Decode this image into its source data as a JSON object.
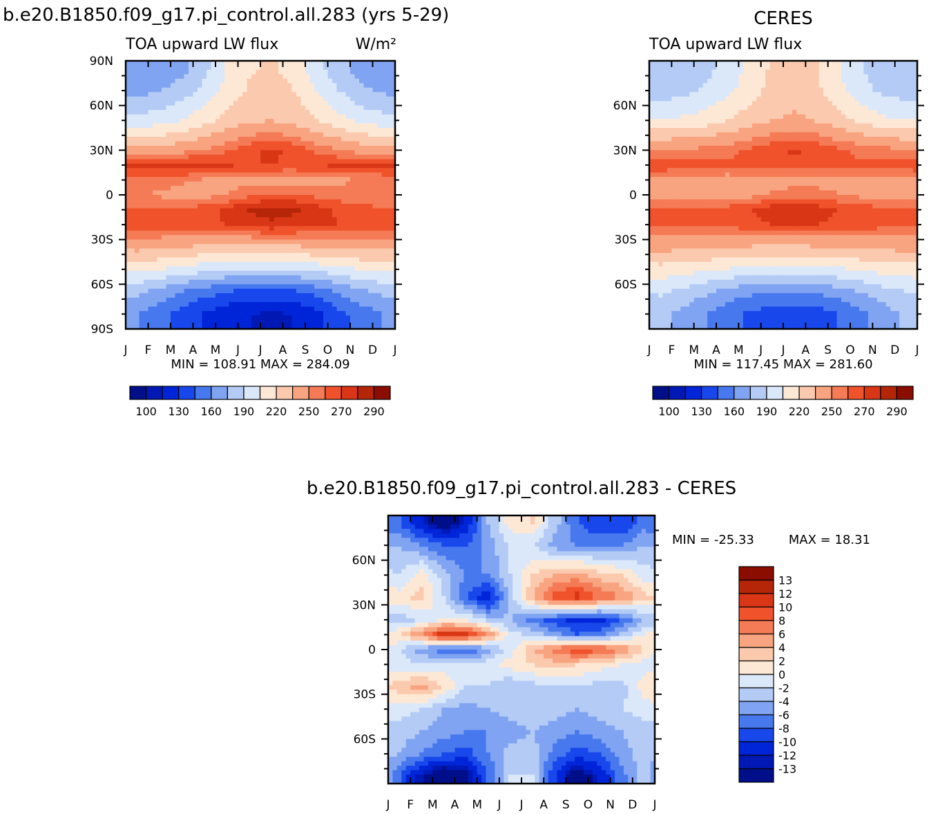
{
  "chart_data": [
    {
      "type": "heatmap",
      "title": "b.e20.B1850.f09_g17.pi_control.all.283 (yrs 5-29)",
      "left_label": "TOA upward LW flux",
      "right_label": "W/m²",
      "x_ticks": [
        "J",
        "F",
        "M",
        "A",
        "M",
        "J",
        "J",
        "A",
        "S",
        "O",
        "N",
        "D",
        "J"
      ],
      "y_ticks": [
        "90N",
        "60N",
        "30N",
        "0",
        "30S",
        "60S",
        "90S"
      ],
      "stats": "MIN =  108.91  MAX =  284.09",
      "colorbar_labels": [
        "100",
        "130",
        "160",
        "190",
        "220",
        "250",
        "270",
        "290"
      ],
      "colors": [
        "#000e8a",
        "#0018b4",
        "#0024d8",
        "#1848ec",
        "#4878ee",
        "#80a4f2",
        "#b4cbf6",
        "#dbe8fa",
        "#fde8d6",
        "#fbcaae",
        "#f8a480",
        "#f47b55",
        "#f0532c",
        "#d93615",
        "#b52508",
        "#8b0d00"
      ],
      "levels": [
        100,
        115,
        130,
        145,
        160,
        175,
        190,
        205,
        220,
        235,
        250,
        260,
        270,
        280,
        290
      ],
      "field": {
        "months": [
          "Jan",
          "Feb",
          "Mar",
          "Apr",
          "May",
          "Jun",
          "Jul",
          "Aug",
          "Sep",
          "Oct",
          "Nov",
          "Dec"
        ],
        "lat": [
          85,
          70,
          50,
          30,
          20,
          10,
          0,
          -10,
          -20,
          -35,
          -50,
          -65,
          -80
        ],
        "values": [
          [
            160,
            163,
            170,
            185,
            205,
            218,
            222,
            215,
            195,
            180,
            168,
            162
          ],
          [
            170,
            174,
            182,
            195,
            210,
            222,
            226,
            220,
            205,
            190,
            178,
            172
          ],
          [
            195,
            198,
            205,
            215,
            225,
            232,
            235,
            230,
            220,
            210,
            200,
            196
          ],
          [
            240,
            242,
            245,
            250,
            258,
            268,
            272,
            268,
            258,
            250,
            244,
            241
          ],
          [
            272,
            275,
            277,
            275,
            272,
            270,
            270,
            268,
            270,
            272,
            273,
            272
          ],
          [
            258,
            256,
            252,
            248,
            245,
            244,
            243,
            244,
            246,
            248,
            250,
            254
          ],
          [
            250,
            248,
            245,
            245,
            250,
            258,
            262,
            262,
            257,
            254,
            253,
            252
          ],
          [
            262,
            262,
            263,
            266,
            272,
            281,
            284,
            282,
            275,
            268,
            263,
            262
          ],
          [
            266,
            266,
            266,
            268,
            270,
            276,
            278,
            276,
            272,
            270,
            268,
            267
          ],
          [
            240,
            238,
            235,
            233,
            230,
            230,
            231,
            233,
            236,
            238,
            240,
            240
          ],
          [
            210,
            206,
            200,
            195,
            192,
            190,
            190,
            192,
            195,
            200,
            205,
            208
          ],
          [
            178,
            170,
            160,
            152,
            145,
            140,
            140,
            142,
            150,
            162,
            172,
            178
          ],
          [
            160,
            150,
            138,
            128,
            120,
            115,
            113,
            115,
            125,
            140,
            152,
            160
          ]
        ]
      }
    },
    {
      "type": "heatmap",
      "title": "CERES",
      "left_label": "TOA upward LW flux",
      "x_ticks": [
        "J",
        "F",
        "M",
        "A",
        "M",
        "J",
        "J",
        "A",
        "S",
        "O",
        "N",
        "D",
        "J"
      ],
      "y_ticks": [
        "60N",
        "30N",
        "0",
        "30S",
        "60S"
      ],
      "stats": "MIN =  117.45  MAX =  281.60",
      "colorbar_labels": [
        "100",
        "130",
        "160",
        "190",
        "220",
        "250",
        "270",
        "290"
      ],
      "levels": [
        100,
        115,
        130,
        145,
        160,
        175,
        190,
        205,
        220,
        235,
        250,
        260,
        270,
        280,
        290
      ],
      "field": {
        "months": [
          "Jan",
          "Feb",
          "Mar",
          "Apr",
          "May",
          "Jun",
          "Jul",
          "Aug",
          "Sep",
          "Oct",
          "Nov",
          "Dec"
        ],
        "lat": [
          85,
          70,
          50,
          30,
          20,
          10,
          0,
          -10,
          -20,
          -35,
          -50,
          -65,
          -80
        ],
        "values": [
          [
            175,
            178,
            185,
            195,
            210,
            222,
            225,
            220,
            205,
            190,
            180,
            176
          ],
          [
            182,
            186,
            192,
            200,
            214,
            225,
            228,
            223,
            210,
            196,
            186,
            183
          ],
          [
            205,
            208,
            212,
            220,
            228,
            235,
            238,
            234,
            226,
            216,
            208,
            205
          ],
          [
            252,
            252,
            254,
            257,
            262,
            268,
            272,
            268,
            262,
            257,
            254,
            252
          ],
          [
            268,
            264,
            262,
            261,
            262,
            263,
            264,
            263,
            262,
            262,
            263,
            266
          ],
          [
            248,
            246,
            245,
            244,
            244,
            244,
            244,
            244,
            245,
            246,
            247,
            248
          ],
          [
            244,
            242,
            241,
            242,
            246,
            252,
            256,
            255,
            250,
            247,
            246,
            245
          ],
          [
            262,
            262,
            263,
            265,
            270,
            276,
            278,
            276,
            270,
            266,
            263,
            262
          ],
          [
            263,
            263,
            263,
            264,
            266,
            270,
            272,
            270,
            267,
            265,
            264,
            263
          ],
          [
            240,
            239,
            238,
            236,
            234,
            233,
            233,
            234,
            236,
            238,
            239,
            240
          ],
          [
            214,
            212,
            208,
            204,
            200,
            198,
            198,
            200,
            203,
            207,
            211,
            213
          ],
          [
            192,
            186,
            178,
            170,
            164,
            160,
            160,
            162,
            168,
            176,
            184,
            190
          ],
          [
            180,
            170,
            160,
            150,
            142,
            138,
            136,
            138,
            145,
            156,
            168,
            178
          ]
        ]
      }
    },
    {
      "type": "heatmap",
      "title": "b.e20.B1850.f09_g17.pi_control.all.283 - CERES",
      "x_ticks": [
        "J",
        "F",
        "M",
        "A",
        "M",
        "J",
        "J",
        "A",
        "S",
        "O",
        "N",
        "D",
        "J"
      ],
      "y_ticks": [
        "60N",
        "30N",
        "0",
        "30S",
        "60S"
      ],
      "stats_min": "MIN = -25.33",
      "stats_max": "MAX =   18.31",
      "colorbar_labels": [
        "13",
        "12",
        "10",
        "8",
        "6",
        "4",
        "2",
        "0",
        "-2",
        "-4",
        "-6",
        "-8",
        "-10",
        "-12",
        "-13"
      ],
      "levels": [
        -13,
        -12,
        -10,
        -8,
        -6,
        -4,
        -2,
        0,
        2,
        4,
        6,
        8,
        10,
        12,
        13
      ],
      "field": {
        "months": [
          "Jan",
          "Feb",
          "Mar",
          "Apr",
          "May",
          "Jun",
          "Jul",
          "Aug",
          "Sep",
          "Oct",
          "Nov",
          "Dec"
        ],
        "lat": [
          85,
          70,
          50,
          35,
          20,
          10,
          0,
          -10,
          -25,
          -40,
          -55,
          -70,
          -85
        ],
        "values": [
          [
            -8,
            -12,
            -15,
            -12,
            -4,
            1,
            2,
            -3,
            -8,
            -10,
            -10,
            -7
          ],
          [
            -4,
            -6,
            -8,
            -8,
            -5,
            -2,
            -2,
            -5,
            -6,
            -6,
            -6,
            -4
          ],
          [
            -2,
            1,
            -3,
            -6,
            -6,
            -2,
            2,
            4,
            5,
            3,
            2,
            -1
          ],
          [
            1,
            3,
            -2,
            -8,
            -12,
            -3,
            4,
            9,
            11,
            8,
            6,
            3
          ],
          [
            -3,
            -2,
            0,
            0,
            -3,
            -4,
            -7,
            -9,
            -11,
            -11,
            -8,
            -4
          ],
          [
            2,
            6,
            12,
            11,
            6,
            -1,
            -3,
            -5,
            -8,
            -7,
            -3,
            0
          ],
          [
            -2,
            -5,
            -8,
            -8,
            -5,
            -1,
            4,
            7,
            10,
            9,
            6,
            2
          ],
          [
            -1,
            -2,
            -1,
            -2,
            -1,
            1,
            2,
            3,
            2,
            1,
            0,
            -1
          ],
          [
            3,
            5,
            2,
            -2,
            -2,
            -4,
            -3,
            -2,
            -2,
            -3,
            -3,
            1
          ],
          [
            -1,
            -2,
            -4,
            -5,
            -4,
            -3,
            -2,
            -3,
            -4,
            -3,
            -2,
            -1
          ],
          [
            -3,
            -4,
            -5,
            -6,
            -6,
            -5,
            -4,
            -5,
            -6,
            -5,
            -4,
            -3
          ],
          [
            -4,
            -6,
            -8,
            -9,
            -6,
            -3,
            -3,
            -7,
            -9,
            -8,
            -5,
            -3
          ],
          [
            -8,
            -13,
            -16,
            -14,
            -8,
            -2,
            -2,
            -10,
            -15,
            -12,
            -7,
            -3
          ]
        ]
      }
    }
  ]
}
